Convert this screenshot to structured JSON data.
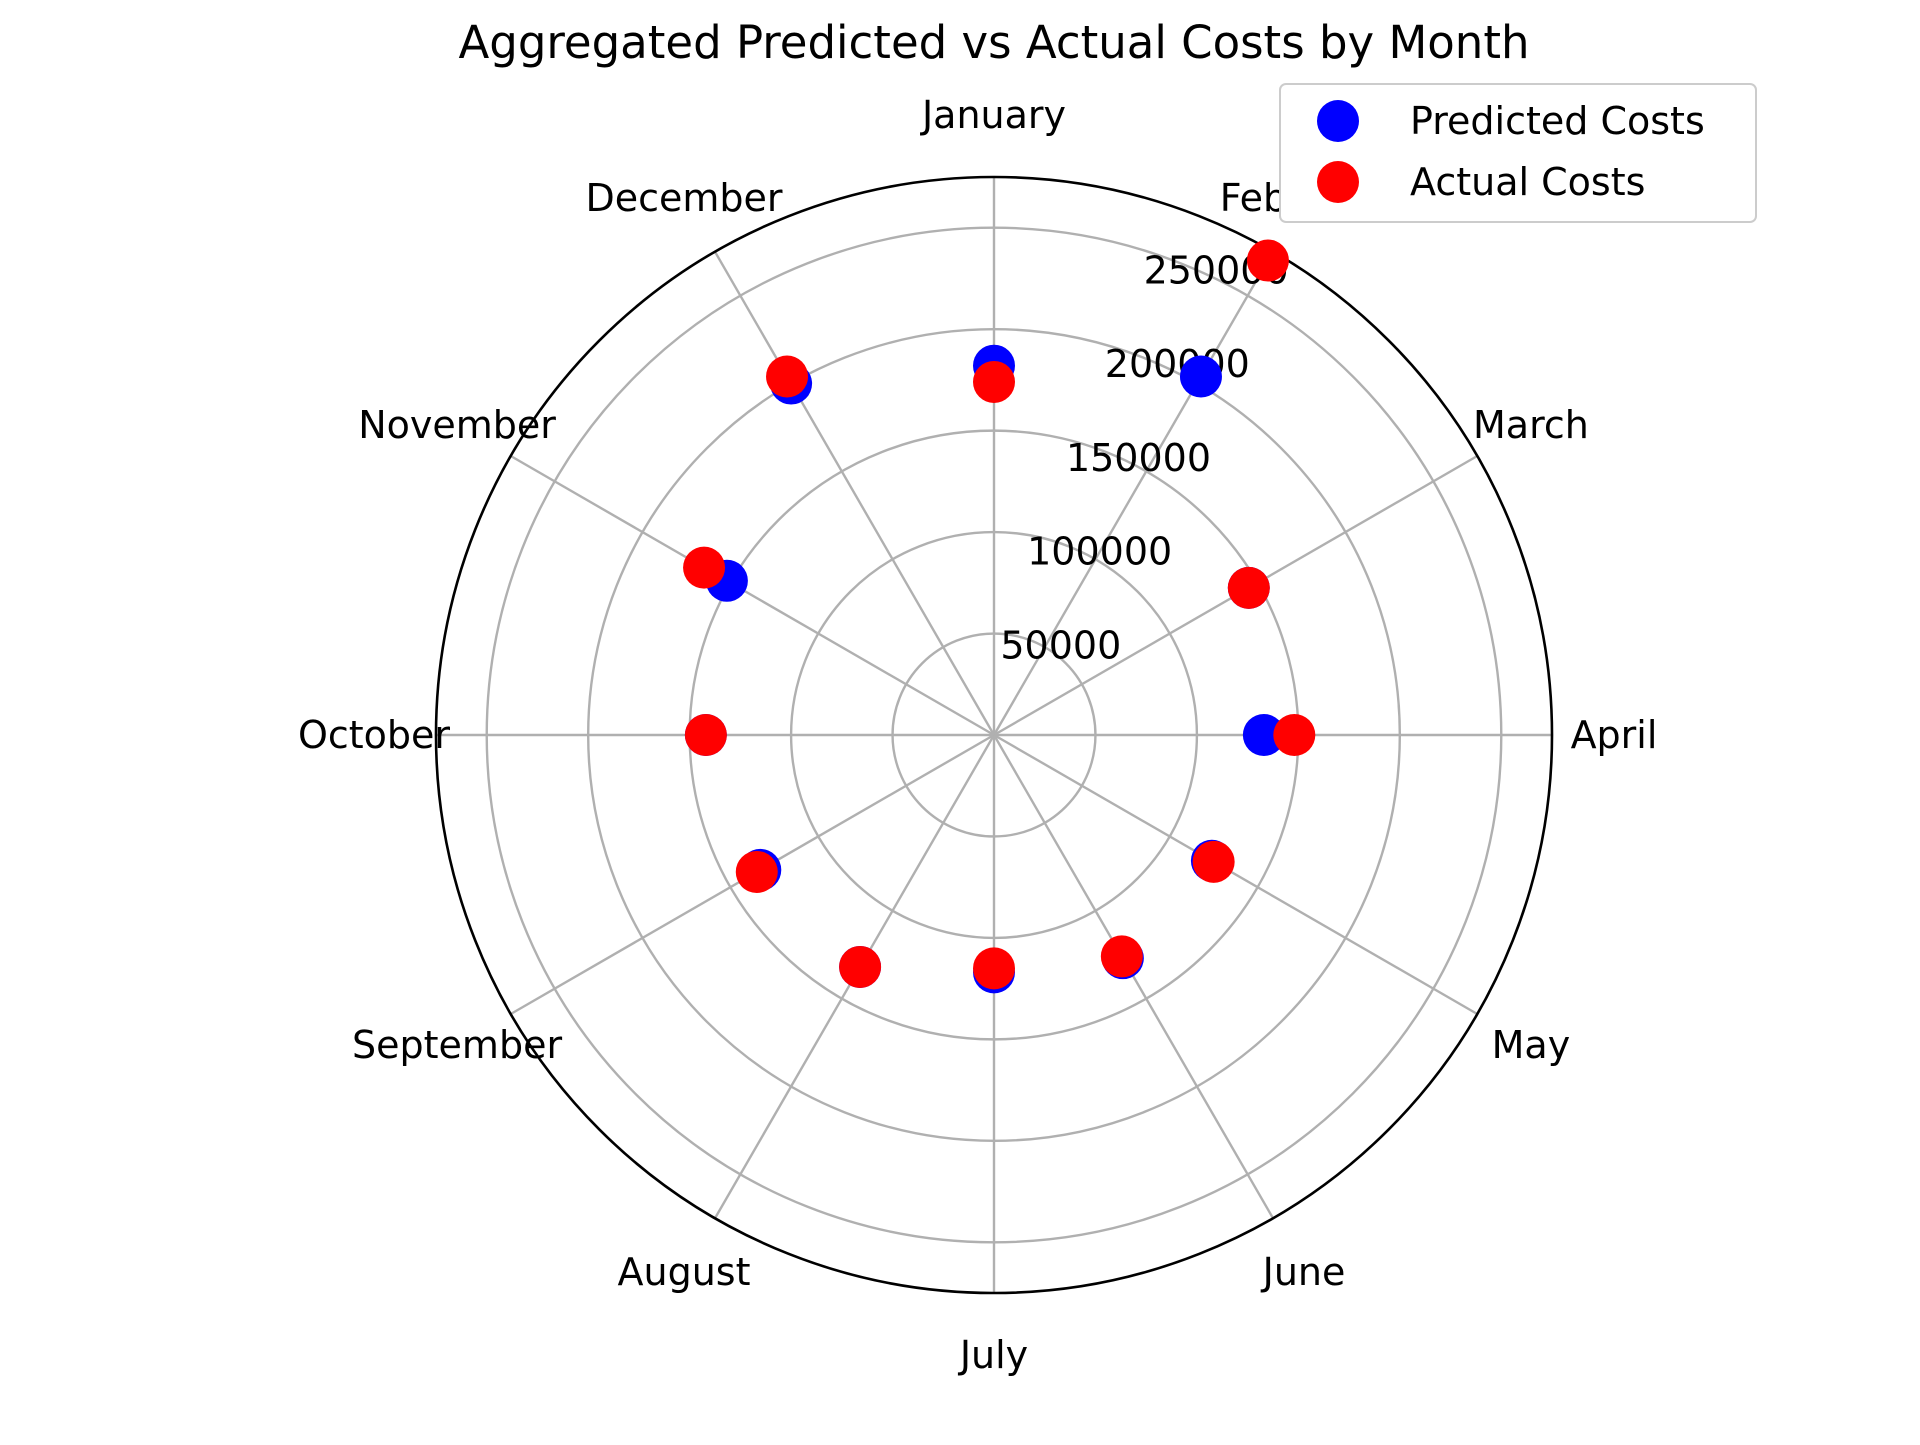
{
  "chart_data": {
    "type": "scatter",
    "subtype": "polar",
    "title": "Aggregated Predicted vs Actual Costs by Month",
    "categories": [
      "January",
      "February",
      "March",
      "April",
      "May",
      "June",
      "July",
      "August",
      "September",
      "October",
      "November",
      "December"
    ],
    "radial_ticks": [
      50000,
      100000,
      150000,
      200000,
      250000
    ],
    "rlim": [
      0,
      275000
    ],
    "direction": "clockwise",
    "zero_location": "top",
    "grid": true,
    "legend_position": "top-right",
    "series": [
      {
        "name": "Predicted Costs",
        "color": "#0000ff",
        "values": [
          182000,
          204000,
          145000,
          133000,
          124000,
          127000,
          117000,
          132000,
          133000,
          142000,
          152000,
          200000
        ]
      },
      {
        "name": "Actual Costs",
        "color": "#ff0000",
        "values": [
          174000,
          270000,
          145000,
          148000,
          125000,
          126000,
          115000,
          132000,
          135000,
          142000,
          165000,
          204000
        ]
      }
    ]
  }
}
